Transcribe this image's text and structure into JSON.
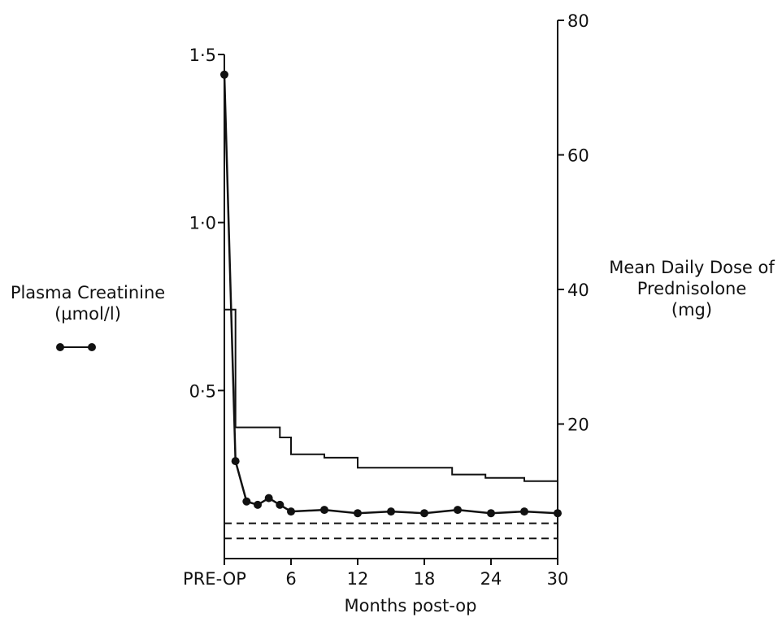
{
  "chart_data": {
    "type": "line",
    "x_axis": {
      "label": "Months post-op",
      "ticks": [
        "PRE-OP",
        "6",
        "12",
        "18",
        "24",
        "30"
      ],
      "range": [
        0,
        30
      ]
    },
    "y_axis_left": {
      "label_lines": [
        "Plasma Creatinine",
        "(µmol/l)"
      ],
      "ticks": [
        "1·5",
        "1·0",
        "0·5"
      ],
      "range": [
        0,
        1.5
      ]
    },
    "y_axis_right": {
      "label_lines": [
        "Mean Daily Dose of",
        "Prednisolone",
        "(mg)"
      ],
      "ticks": [
        "80",
        "60",
        "40",
        "20"
      ],
      "range": [
        0,
        80
      ]
    },
    "series": [
      {
        "axis": "left",
        "style": "line-with-dots",
        "points": [
          [
            0,
            1.44
          ],
          [
            1,
            0.29
          ],
          [
            2,
            0.17
          ],
          [
            3,
            0.16
          ],
          [
            4,
            0.18
          ],
          [
            5,
            0.16
          ],
          [
            6,
            0.14
          ],
          [
            9,
            0.145
          ],
          [
            12,
            0.135
          ],
          [
            15,
            0.14
          ],
          [
            18,
            0.135
          ],
          [
            21,
            0.145
          ],
          [
            24,
            0.135
          ],
          [
            27,
            0.14
          ],
          [
            30,
            0.135
          ]
        ]
      },
      {
        "axis": "right",
        "style": "step",
        "points": [
          [
            0,
            37
          ],
          [
            1,
            37
          ],
          [
            1,
            19.5
          ],
          [
            5,
            19.5
          ],
          [
            5,
            18
          ],
          [
            6,
            18
          ],
          [
            6,
            15.5
          ],
          [
            9,
            15.5
          ],
          [
            9,
            15
          ],
          [
            12,
            15
          ],
          [
            12,
            13.5
          ],
          [
            20.5,
            13.5
          ],
          [
            20.5,
            12.5
          ],
          [
            23.5,
            12.5
          ],
          [
            23.5,
            12
          ],
          [
            27,
            12
          ],
          [
            27,
            11.5
          ],
          [
            30,
            11.5
          ]
        ]
      }
    ],
    "reference_lines": [
      {
        "axis": "left",
        "value": 0.105,
        "style": "dashed"
      },
      {
        "axis": "left",
        "value": 0.06,
        "style": "dashed"
      }
    ],
    "legend": {
      "placement": "left",
      "symbol": "line-with-dots"
    }
  }
}
